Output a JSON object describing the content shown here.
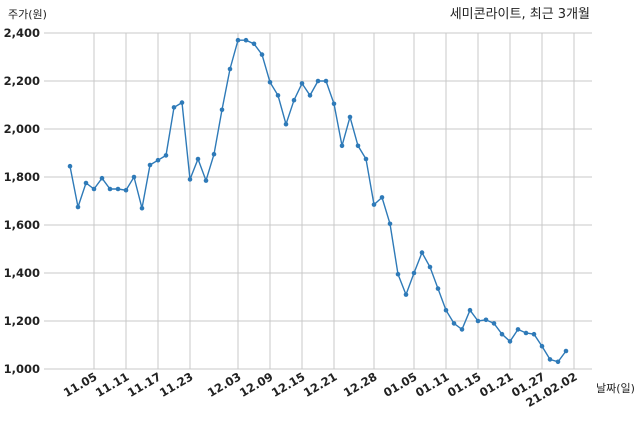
{
  "chart_data": {
    "type": "line",
    "title": "세미콘라이트, 최근 3개월",
    "ylabel": "주가(원)",
    "xlabel": "날짜(일)",
    "ylim": [
      1000,
      2400
    ],
    "yticks": [
      1000,
      1200,
      1400,
      1600,
      1800,
      2000,
      2200,
      2400
    ],
    "ytick_labels": [
      "1,000",
      "1,200",
      "1,400",
      "1,600",
      "1,800",
      "2,000",
      "2,200",
      "2,400"
    ],
    "xtick_labels": [
      "11.05",
      "11.11",
      "11.17",
      "11.23",
      "12.03",
      "12.09",
      "12.15",
      "12.21",
      "12.28",
      "01.05",
      "01.11",
      "01.15",
      "01.21",
      "01.27",
      "21.02.02"
    ],
    "xtick_index": [
      3,
      7,
      11,
      15,
      21,
      25,
      29,
      33,
      38,
      43,
      47,
      51,
      55,
      59,
      63
    ],
    "grid": true,
    "color": "#2e7ab8",
    "series": [
      {
        "values": [
          1845,
          1675,
          1775,
          1750,
          1795,
          1750,
          1750,
          1745,
          1800,
          1670,
          1850,
          1870,
          1890,
          2090,
          2110,
          1790,
          1875,
          1785,
          1895,
          2080,
          2250,
          2370,
          2370,
          2355,
          2310,
          2195,
          2140,
          2020,
          2120,
          2190,
          2140,
          2200,
          2200,
          2105,
          1930,
          2050,
          1930,
          1875,
          1685,
          1715,
          1605,
          1395,
          1310,
          1400,
          1485,
          1425,
          1335,
          1245,
          1190,
          1165,
          1245,
          1200,
          1205,
          1190,
          1145,
          1115,
          1165,
          1150,
          1145,
          1095,
          1040,
          1030,
          1075
        ]
      }
    ]
  }
}
